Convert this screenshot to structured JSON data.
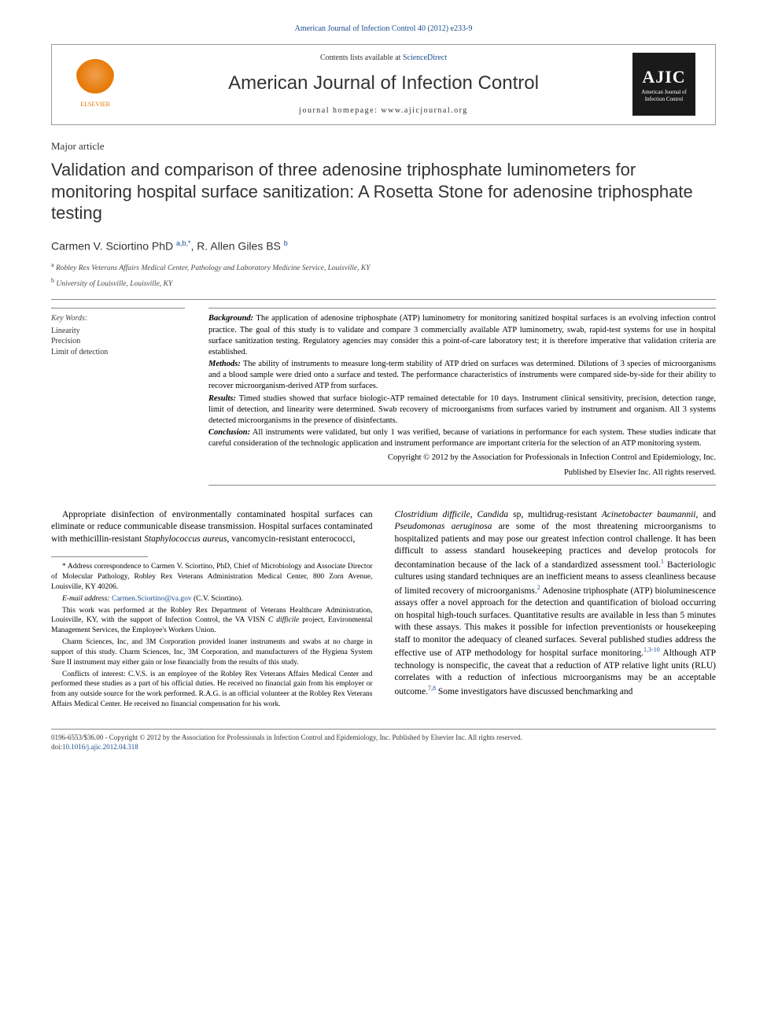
{
  "citation": "American Journal of Infection Control 40 (2012) e233-9",
  "header": {
    "contents_prefix": "Contents lists available at ",
    "contents_link": "ScienceDirect",
    "journal_name": "American Journal of Infection Control",
    "homepage_prefix": "journal homepage: ",
    "homepage": "www.ajicjournal.org",
    "elsevier_label": "ELSEVIER",
    "ajic_abbrev": "AJIC",
    "ajic_sub": "American Journal of Infection Control"
  },
  "article_type": "Major article",
  "title": "Validation and comparison of three adenosine triphosphate luminometers for monitoring hospital surface sanitization: A Rosetta Stone for adenosine triphosphate testing",
  "authors_html": "Carmen V. Sciortino PhD <sup>a,b,*</sup>, R. Allen Giles BS <sup>b</sup>",
  "affiliations": [
    {
      "sup": "a",
      "text": "Robley Rex Veterans Affairs Medical Center, Pathology and Laboratory Medicine Service, Louisville, KY"
    },
    {
      "sup": "b",
      "text": "University of Louisville, Louisville, KY"
    }
  ],
  "keywords": {
    "label": "Key Words:",
    "items": [
      "Linearity",
      "Precision",
      "Limit of detection"
    ]
  },
  "abstract": {
    "background": "The application of adenosine triphosphate (ATP) luminometry for monitoring sanitized hospital surfaces is an evolving infection control practice. The goal of this study is to validate and compare 3 commercially available ATP luminometry, swab, rapid-test systems for use in hospital surface sanitization testing. Regulatory agencies may consider this a point-of-care laboratory test; it is therefore imperative that validation criteria are established.",
    "methods": "The ability of instruments to measure long-term stability of ATP dried on surfaces was determined. Dilutions of 3 species of microorganisms and a blood sample were dried onto a surface and tested. The performance characteristics of instruments were compared side-by-side for their ability to recover microorganism-derived ATP from surfaces.",
    "results": "Timed studies showed that surface biologic-ATP remained detectable for 10 days. Instrument clinical sensitivity, precision, detection range, limit of detection, and linearity were determined. Swab recovery of microorganisms from surfaces varied by instrument and organism. All 3 systems detected microorganisms in the presence of disinfectants.",
    "conclusion": "All instruments were validated, but only 1 was verified, because of variations in performance for each system. These studies indicate that careful consideration of the technologic application and instrument performance are important criteria for the selection of an ATP monitoring system.",
    "copyright1": "Copyright © 2012 by the Association for Professionals in Infection Control and Epidemiology, Inc.",
    "copyright2": "Published by Elsevier Inc. All rights reserved."
  },
  "body": {
    "col1_p1": "Appropriate disinfection of environmentally contaminated hospital surfaces can eliminate or reduce communicable disease transmission. Hospital surfaces contaminated with methicillin-resistant <em>Staphylococcus aureus</em>, vancomycin-resistant enterococci,",
    "col2_p1": "<em>Clostridium difficile</em>, <em>Candida</em> sp, multidrug-resistant <em>Acinetobacter baumannii</em>, and <em>Pseudomonas aeruginosa</em> are some of the most threatening microorganisms to hospitalized patients and may pose our greatest infection control challenge. It has been difficult to assess standard housekeeping practices and develop protocols for decontamination because of the lack of a standardized assessment tool.<sup>1</sup> Bacteriologic cultures using standard techniques are an inefficient means to assess cleanliness because of limited recovery of microorganisms.<sup>2</sup> Adenosine triphosphate (ATP) bioluminescence assays offer a novel approach for the detection and quantification of bioload occurring on hospital high-touch surfaces. Quantitative results are available in less than 5 minutes with these assays. This makes it possible for infection preventionists or housekeeping staff to monitor the adequacy of cleaned surfaces. Several published studies address the effective use of ATP methodology for hospital surface monitoring.<sup>1,3-10</sup> Although ATP technology is nonspecific, the caveat that a reduction of ATP relative light units (RLU) correlates with a reduction of infectious microorganisms may be an acceptable outcome.<sup>7,8</sup> Some investigators have discussed benchmarking and"
  },
  "footnotes": {
    "corr": "* Address correspondence to Carmen V. Sciortino, PhD, Chief of Microbiology and Associate Director of Molecular Pathology, Robley Rex Veterans Administration Medical Center, 800 Zorn Avenue, Louisville, KY 40206.",
    "email_label": "E-mail address:",
    "email": "Carmen.Sciortino@va.gov",
    "email_paren": "(C.V. Sciortino).",
    "n1": "This work was performed at the Robley Rex Department of Veterans Healthcare Administration, Louisville, KY, with the support of Infection Control, the VA VISN <em>C difficile</em> project, Environmental Management Services, the Employee's Workers Union.",
    "n2": "Charm Sciences, Inc, and 3M Corporation provided loaner instruments and swabs at no charge in support of this study. Charm Sciences, Inc, 3M Corporation, and manufacturers of the Hygiena System Sure II instrument may either gain or lose financially from the results of this study.",
    "n3": "Conflicts of interest: C.V.S. is an employee of the Robley Rex Veterans Affairs Medical Center and performed these studies as a part of his official duties. He received no financial gain from his employer or from any outside source for the work performed. R.A.G. is an official volunteer at the Robley Rex Veterans Affairs Medical Center. He received no financial compensation for his work."
  },
  "bottom": {
    "line1": "0196-6553/$36.00 - Copyright © 2012 by the Association for Professionals in Infection Control and Epidemiology, Inc. Published by Elsevier Inc. All rights reserved.",
    "doi_label": "doi:",
    "doi": "10.1016/j.ajic.2012.04.318"
  },
  "colors": {
    "link": "#1a4d8f",
    "text": "#000000",
    "header_border": "#999999",
    "elsevier_orange": "#e67700",
    "ajic_bg": "#1a1a1a"
  }
}
